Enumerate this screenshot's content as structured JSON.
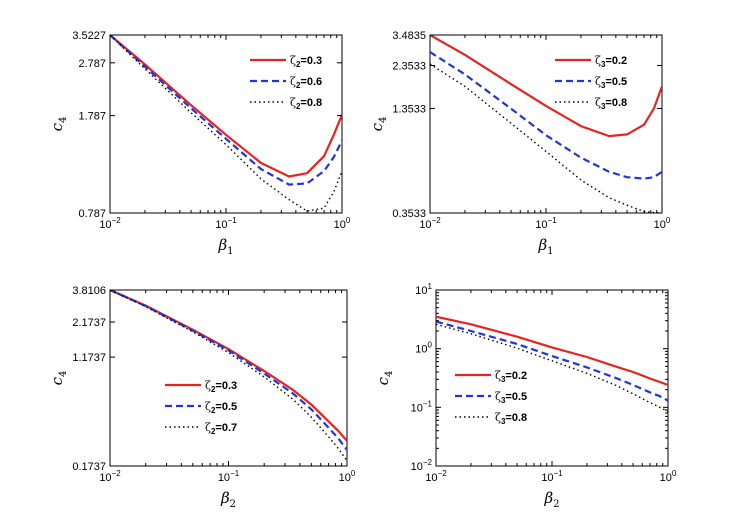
{
  "chart_data": [
    {
      "type": "line",
      "xscale": "log",
      "yscale": "log",
      "xlim": [
        0.01,
        1
      ],
      "ylim": [
        0.787,
        3.5227
      ],
      "xlabel_sym": "β",
      "xlabel_sub": "1",
      "ylabel_sym": "c",
      "ylabel_sub": "4",
      "xticks": [
        {
          "v": 0.01,
          "b": "10",
          "e": "−2"
        },
        {
          "v": 0.1,
          "b": "10",
          "e": "−1"
        },
        {
          "v": 1,
          "b": "10",
          "e": "0"
        }
      ],
      "yticks": [
        {
          "v": 0.787,
          "l": "0.787"
        },
        {
          "v": 1.787,
          "l": "1.787"
        },
        {
          "v": 2.787,
          "l": "2.787"
        },
        {
          "v": 3.5227,
          "l": "3.5227"
        }
      ],
      "legend_position": "top-right",
      "series": [
        {
          "name": "ζ",
          "sub": "2",
          "val": "=0.3",
          "style": "solid",
          "color": "#e8231f",
          "x": [
            0.01,
            0.02,
            0.05,
            0.1,
            0.2,
            0.35,
            0.5,
            0.7,
            0.85,
            1.0
          ],
          "y": [
            3.5227,
            2.75,
            1.95,
            1.52,
            1.2,
            1.07,
            1.1,
            1.27,
            1.52,
            1.8
          ]
        },
        {
          "name": "ζ",
          "sub": "2",
          "val": "=0.6",
          "style": "dashed",
          "color": "#1f35e0",
          "x": [
            0.01,
            0.02,
            0.05,
            0.1,
            0.2,
            0.35,
            0.5,
            0.7,
            0.85,
            1.0
          ],
          "y": [
            3.5227,
            2.7,
            1.9,
            1.47,
            1.14,
            1.0,
            1.01,
            1.12,
            1.26,
            1.45
          ]
        },
        {
          "name": "ζ",
          "sub": "2",
          "val": "=0.8",
          "style": "dotted",
          "color": "#000000",
          "x": [
            0.01,
            0.02,
            0.05,
            0.1,
            0.2,
            0.35,
            0.5,
            0.7,
            0.85,
            1.0
          ],
          "y": [
            3.5227,
            2.65,
            1.83,
            1.4,
            1.05,
            0.88,
            0.8,
            0.82,
            0.94,
            1.12
          ]
        }
      ]
    },
    {
      "type": "line",
      "xscale": "log",
      "yscale": "log",
      "xlim": [
        0.01,
        1
      ],
      "ylim": [
        0.3533,
        3.4835
      ],
      "xlabel_sym": "β",
      "xlabel_sub": "1",
      "ylabel_sym": "c",
      "ylabel_sub": "4",
      "xticks": [
        {
          "v": 0.01,
          "b": "10",
          "e": "−2"
        },
        {
          "v": 0.1,
          "b": "10",
          "e": "−1"
        },
        {
          "v": 1,
          "b": "10",
          "e": "0"
        }
      ],
      "yticks": [
        {
          "v": 0.3533,
          "l": "0.3533"
        },
        {
          "v": 1.3533,
          "l": "1.3533"
        },
        {
          "v": 2.3533,
          "l": "2.3533"
        },
        {
          "v": 3.4835,
          "l": "3.4835"
        }
      ],
      "legend_position": "top-right",
      "series": [
        {
          "name": "ζ",
          "sub": "3",
          "val": "=0.2",
          "style": "solid",
          "color": "#e8231f",
          "x": [
            0.01,
            0.02,
            0.05,
            0.1,
            0.2,
            0.35,
            0.5,
            0.7,
            0.85,
            1.0
          ],
          "y": [
            3.4835,
            2.7,
            1.85,
            1.4,
            1.08,
            0.95,
            0.97,
            1.1,
            1.35,
            1.8
          ]
        },
        {
          "name": "ζ",
          "sub": "3",
          "val": "=0.5",
          "style": "dashed",
          "color": "#1f35e0",
          "x": [
            0.01,
            0.02,
            0.05,
            0.1,
            0.2,
            0.35,
            0.5,
            0.7,
            0.85,
            1.0
          ],
          "y": [
            2.8,
            2.1,
            1.35,
            0.96,
            0.72,
            0.6,
            0.56,
            0.55,
            0.56,
            0.6
          ]
        },
        {
          "name": "ζ",
          "sub": "3",
          "val": "=0.8",
          "style": "dotted",
          "color": "#000000",
          "x": [
            0.01,
            0.02,
            0.05,
            0.1,
            0.2,
            0.35,
            0.5,
            0.7,
            0.85,
            1.0
          ],
          "y": [
            2.4,
            1.8,
            1.12,
            0.78,
            0.54,
            0.43,
            0.39,
            0.36,
            0.355,
            0.3533
          ]
        }
      ]
    },
    {
      "type": "line",
      "xscale": "log",
      "yscale": "log",
      "xlim": [
        0.01,
        1
      ],
      "ylim": [
        0.1737,
        3.8106
      ],
      "xlabel_sym": "β",
      "xlabel_sub": "2",
      "ylabel_sym": "c",
      "ylabel_sub": "4",
      "xticks": [
        {
          "v": 0.01,
          "b": "10",
          "e": "−2"
        },
        {
          "v": 0.1,
          "b": "10",
          "e": "−1"
        },
        {
          "v": 1,
          "b": "10",
          "e": "0"
        }
      ],
      "yticks": [
        {
          "v": 0.1737,
          "l": "0.1737"
        },
        {
          "v": 1.1737,
          "l": "1.1737"
        },
        {
          "v": 2.1737,
          "l": "2.1737"
        },
        {
          "v": 3.8106,
          "l": "3.8106"
        }
      ],
      "legend_position": "bottom-center",
      "series": [
        {
          "name": "ζ",
          "sub": "2",
          "val": "=0.3",
          "style": "solid",
          "color": "#e8231f",
          "x": [
            0.01,
            0.02,
            0.05,
            0.1,
            0.2,
            0.35,
            0.5,
            0.7,
            0.85,
            1.0
          ],
          "y": [
            3.8106,
            2.9,
            1.9,
            1.35,
            0.92,
            0.66,
            0.51,
            0.38,
            0.32,
            0.27
          ]
        },
        {
          "name": "ζ",
          "sub": "2",
          "val": "=0.5",
          "style": "dashed",
          "color": "#1f35e0",
          "x": [
            0.01,
            0.02,
            0.05,
            0.1,
            0.2,
            0.35,
            0.5,
            0.7,
            0.85,
            1.0
          ],
          "y": [
            3.8106,
            2.88,
            1.87,
            1.32,
            0.88,
            0.62,
            0.47,
            0.34,
            0.28,
            0.23
          ]
        },
        {
          "name": "ζ",
          "sub": "2",
          "val": "=0.7",
          "style": "dotted",
          "color": "#000000",
          "x": [
            0.01,
            0.02,
            0.05,
            0.1,
            0.2,
            0.35,
            0.5,
            0.7,
            0.85,
            1.0
          ],
          "y": [
            3.8106,
            2.85,
            1.83,
            1.27,
            0.83,
            0.56,
            0.41,
            0.29,
            0.235,
            0.19
          ]
        }
      ]
    },
    {
      "type": "line",
      "xscale": "log",
      "yscale": "log",
      "xlim": [
        0.01,
        1
      ],
      "ylim": [
        0.01,
        10
      ],
      "xlabel_sym": "β",
      "xlabel_sub": "2",
      "ylabel_sym": "c",
      "ylabel_sub": "4",
      "xticks": [
        {
          "v": 0.01,
          "b": "10",
          "e": "−2"
        },
        {
          "v": 0.1,
          "b": "10",
          "e": "−1"
        },
        {
          "v": 1,
          "b": "10",
          "e": "0"
        }
      ],
      "yticks": [
        {
          "v": 0.01,
          "b": "10",
          "e": "−2"
        },
        {
          "v": 0.1,
          "b": "10",
          "e": "−1"
        },
        {
          "v": 1,
          "b": "10",
          "e": "0"
        },
        {
          "v": 10,
          "b": "10",
          "e": "1"
        }
      ],
      "legend_position": "center-left",
      "series": [
        {
          "name": "ζ",
          "sub": "3",
          "val": "=0.2",
          "style": "solid",
          "color": "#e8231f",
          "x": [
            0.01,
            0.02,
            0.05,
            0.1,
            0.2,
            0.35,
            0.5,
            0.7,
            0.85,
            1.0
          ],
          "y": [
            3.5,
            2.6,
            1.6,
            1.05,
            0.72,
            0.5,
            0.4,
            0.31,
            0.27,
            0.24
          ]
        },
        {
          "name": "ζ",
          "sub": "3",
          "val": "=0.5",
          "style": "dashed",
          "color": "#1f35e0",
          "x": [
            0.01,
            0.02,
            0.05,
            0.1,
            0.2,
            0.35,
            0.5,
            0.7,
            0.85,
            1.0
          ],
          "y": [
            2.9,
            2.0,
            1.2,
            0.75,
            0.48,
            0.32,
            0.24,
            0.18,
            0.155,
            0.13
          ]
        },
        {
          "name": "ζ",
          "sub": "3",
          "val": "=0.8",
          "style": "dotted",
          "color": "#000000",
          "x": [
            0.01,
            0.02,
            0.05,
            0.1,
            0.2,
            0.35,
            0.5,
            0.7,
            0.85,
            1.0
          ],
          "y": [
            2.6,
            1.8,
            1.02,
            0.62,
            0.38,
            0.24,
            0.17,
            0.12,
            0.1,
            0.085
          ]
        }
      ]
    }
  ]
}
